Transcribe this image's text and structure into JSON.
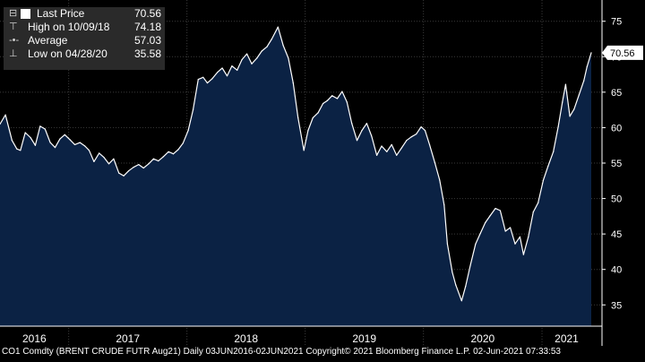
{
  "chart_data": {
    "type": "area",
    "y_axis": {
      "min": 32,
      "max": 78,
      "ticks": [
        35,
        40,
        45,
        50,
        55,
        60,
        65,
        70,
        75
      ],
      "side": "right"
    },
    "x_axis": {
      "year_labels": [
        "2016",
        "2017",
        "2018",
        "2019",
        "2020",
        "2021"
      ]
    },
    "grid": true,
    "series": [
      {
        "name": "Last Price",
        "points": [
          [
            "2016-06-03",
            60.5
          ],
          [
            "2016-06-20",
            61.8
          ],
          [
            "2016-07-10",
            58.2
          ],
          [
            "2016-07-25",
            57.0
          ],
          [
            "2016-08-05",
            56.8
          ],
          [
            "2016-08-20",
            59.3
          ],
          [
            "2016-09-05",
            58.6
          ],
          [
            "2016-09-20",
            57.5
          ],
          [
            "2016-10-05",
            60.2
          ],
          [
            "2016-10-20",
            59.8
          ],
          [
            "2016-11-05",
            57.9
          ],
          [
            "2016-11-20",
            57.2
          ],
          [
            "2016-12-05",
            58.4
          ],
          [
            "2016-12-20",
            59.0
          ],
          [
            "2017-01-05",
            58.3
          ],
          [
            "2017-01-20",
            57.6
          ],
          [
            "2017-02-05",
            57.9
          ],
          [
            "2017-02-20",
            57.4
          ],
          [
            "2017-03-05",
            56.8
          ],
          [
            "2017-03-20",
            55.2
          ],
          [
            "2017-04-05",
            56.4
          ],
          [
            "2017-04-20",
            55.8
          ],
          [
            "2017-05-05",
            54.9
          ],
          [
            "2017-05-20",
            55.6
          ],
          [
            "2017-06-05",
            53.6
          ],
          [
            "2017-06-20",
            53.2
          ],
          [
            "2017-07-05",
            53.9
          ],
          [
            "2017-07-20",
            54.4
          ],
          [
            "2017-08-05",
            54.8
          ],
          [
            "2017-08-20",
            54.3
          ],
          [
            "2017-09-05",
            54.9
          ],
          [
            "2017-09-20",
            55.6
          ],
          [
            "2017-10-05",
            55.3
          ],
          [
            "2017-10-20",
            55.9
          ],
          [
            "2017-11-05",
            56.6
          ],
          [
            "2017-11-20",
            56.3
          ],
          [
            "2017-12-05",
            56.9
          ],
          [
            "2017-12-20",
            57.8
          ],
          [
            "2018-01-05",
            59.6
          ],
          [
            "2018-01-20",
            62.5
          ],
          [
            "2018-02-05",
            66.8
          ],
          [
            "2018-02-20",
            67.1
          ],
          [
            "2018-03-05",
            66.3
          ],
          [
            "2018-03-20",
            66.9
          ],
          [
            "2018-04-05",
            67.8
          ],
          [
            "2018-04-20",
            68.4
          ],
          [
            "2018-05-05",
            67.3
          ],
          [
            "2018-05-20",
            68.7
          ],
          [
            "2018-06-05",
            68.1
          ],
          [
            "2018-06-20",
            69.6
          ],
          [
            "2018-07-05",
            70.4
          ],
          [
            "2018-07-20",
            69.0
          ],
          [
            "2018-08-05",
            69.8
          ],
          [
            "2018-08-20",
            70.8
          ],
          [
            "2018-09-05",
            71.4
          ],
          [
            "2018-09-20",
            72.5
          ],
          [
            "2018-10-09",
            74.18
          ],
          [
            "2018-10-25",
            71.6
          ],
          [
            "2018-11-10",
            69.8
          ],
          [
            "2018-11-25",
            66.3
          ],
          [
            "2018-12-10",
            61.4
          ],
          [
            "2018-12-28",
            56.8
          ],
          [
            "2019-01-10",
            59.6
          ],
          [
            "2019-01-25",
            61.4
          ],
          [
            "2019-02-10",
            62.1
          ],
          [
            "2019-02-25",
            63.4
          ],
          [
            "2019-03-10",
            63.8
          ],
          [
            "2019-03-25",
            64.5
          ],
          [
            "2019-04-10",
            64.1
          ],
          [
            "2019-04-25",
            65.1
          ],
          [
            "2019-05-10",
            63.6
          ],
          [
            "2019-05-25",
            60.6
          ],
          [
            "2019-06-10",
            58.2
          ],
          [
            "2019-06-25",
            59.6
          ],
          [
            "2019-07-10",
            60.6
          ],
          [
            "2019-07-25",
            58.8
          ],
          [
            "2019-08-10",
            56.1
          ],
          [
            "2019-08-25",
            57.4
          ],
          [
            "2019-09-10",
            56.6
          ],
          [
            "2019-09-25",
            57.6
          ],
          [
            "2019-10-10",
            56.1
          ],
          [
            "2019-10-25",
            57.1
          ],
          [
            "2019-11-10",
            58.2
          ],
          [
            "2019-11-25",
            58.7
          ],
          [
            "2019-12-10",
            59.1
          ],
          [
            "2019-12-25",
            60.1
          ],
          [
            "2020-01-06",
            59.6
          ],
          [
            "2020-01-20",
            57.6
          ],
          [
            "2020-02-05",
            55.1
          ],
          [
            "2020-02-20",
            52.6
          ],
          [
            "2020-03-05",
            49.1
          ],
          [
            "2020-03-15",
            43.6
          ],
          [
            "2020-03-30",
            39.6
          ],
          [
            "2020-04-10",
            37.8
          ],
          [
            "2020-04-28",
            35.58
          ],
          [
            "2020-05-10",
            37.6
          ],
          [
            "2020-05-25",
            40.6
          ],
          [
            "2020-06-10",
            43.6
          ],
          [
            "2020-06-25",
            45.1
          ],
          [
            "2020-07-10",
            46.6
          ],
          [
            "2020-07-25",
            47.6
          ],
          [
            "2020-08-10",
            48.6
          ],
          [
            "2020-08-25",
            48.3
          ],
          [
            "2020-09-10",
            45.4
          ],
          [
            "2020-09-25",
            45.9
          ],
          [
            "2020-10-10",
            43.6
          ],
          [
            "2020-10-25",
            44.6
          ],
          [
            "2020-11-05",
            42.1
          ],
          [
            "2020-11-20",
            44.6
          ],
          [
            "2020-12-05",
            48.1
          ],
          [
            "2020-12-20",
            49.4
          ],
          [
            "2021-01-05",
            52.6
          ],
          [
            "2021-01-20",
            54.6
          ],
          [
            "2021-02-05",
            56.6
          ],
          [
            "2021-02-20",
            60.1
          ],
          [
            "2021-03-05",
            63.6
          ],
          [
            "2021-03-15",
            66.1
          ],
          [
            "2021-03-28",
            61.6
          ],
          [
            "2021-04-10",
            62.6
          ],
          [
            "2021-04-25",
            64.6
          ],
          [
            "2021-05-10",
            66.6
          ],
          [
            "2021-05-20",
            68.6
          ],
          [
            "2021-06-02",
            70.56
          ]
        ]
      }
    ],
    "legend": [
      {
        "label": "Last Price",
        "value": "70.56"
      },
      {
        "label": "High on 10/09/18",
        "value": "74.18"
      },
      {
        "label": "Average",
        "value": "57.03"
      },
      {
        "label": "Low on 04/28/20",
        "value": "35.58"
      }
    ],
    "last_price_tag": "70.56"
  },
  "colors": {
    "fill": "#0b2244",
    "line": "#ffffff",
    "grid": "#3a3a3a",
    "background": "#000000",
    "tag_bg": "#ffffff",
    "tag_text": "#000000"
  },
  "footer": {
    "text": "CO1 Comdty (BRENT CRUDE FUTR Aug21)  Daily 03JUN2016-02JUN2021   Copyright© 2021 Bloomberg Finance L.P.  02-Jun-2021 07:33:53"
  }
}
